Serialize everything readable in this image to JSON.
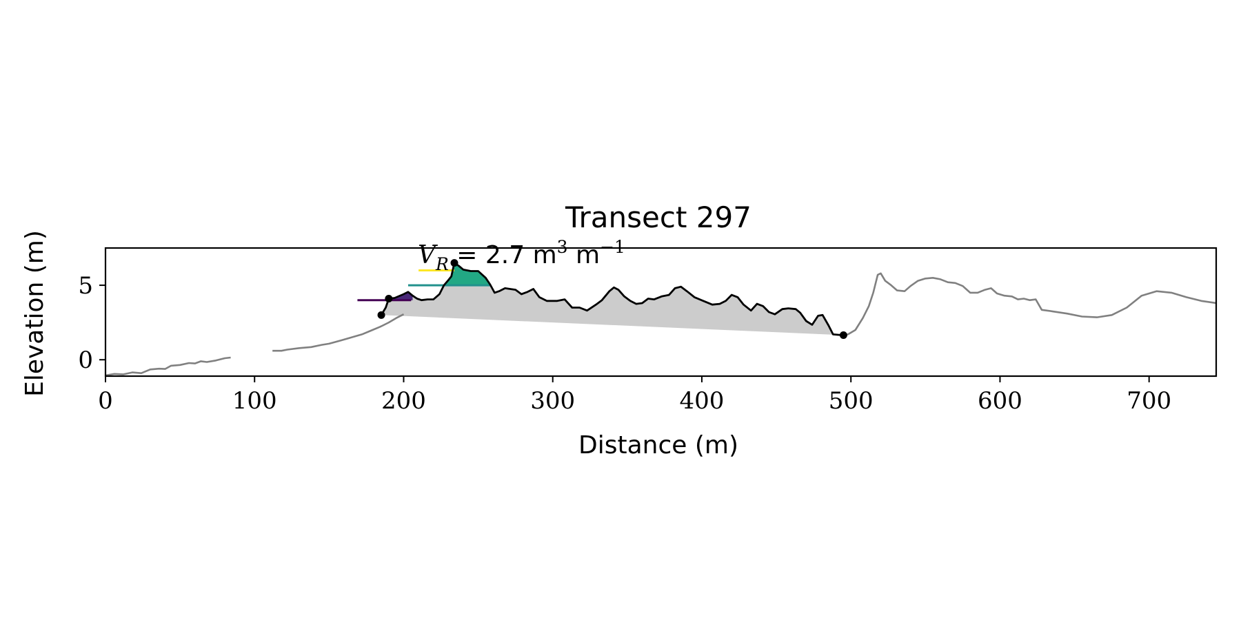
{
  "chart_data": {
    "type": "line",
    "title": "Transect 297",
    "xlabel": "Distance (m)",
    "ylabel": "Elevation (m)",
    "xlim": [
      0,
      745
    ],
    "ylim": [
      -1.1,
      7.5
    ],
    "xticks": [
      0,
      100,
      200,
      300,
      400,
      500,
      600,
      700
    ],
    "yticks": [
      0,
      5
    ],
    "grid": false,
    "legend": "none",
    "annotation": {
      "prefix": "V",
      "subscript": "R",
      "text": " = 2.7 m",
      "sup1": "3",
      "unit2": " m",
      "sup2": "−1"
    },
    "colors": {
      "profile": "#808080",
      "dune": "#000000",
      "fill": "#cccccc",
      "level_low": "#440154",
      "level_mid": "#21918c",
      "level_high": "#fde725",
      "patch_low": "#482878",
      "patch_mid": "#22a884"
    },
    "series": [
      {
        "role": "profile",
        "segments": [
          [
            [
              0,
              -1.05
            ],
            [
              6,
              -0.95
            ],
            [
              12,
              -0.98
            ],
            [
              18,
              -0.85
            ],
            [
              24,
              -0.9
            ],
            [
              30,
              -0.65
            ],
            [
              36,
              -0.6
            ],
            [
              40,
              -0.62
            ],
            [
              44,
              -0.4
            ],
            [
              50,
              -0.35
            ],
            [
              56,
              -0.22
            ],
            [
              60,
              -0.25
            ],
            [
              64,
              -0.1
            ],
            [
              68,
              -0.15
            ],
            [
              74,
              -0.05
            ],
            [
              80,
              0.1
            ],
            [
              84,
              0.15
            ]
          ],
          [
            [
              112,
              0.6
            ],
            [
              118,
              0.6
            ],
            [
              122,
              0.68
            ],
            [
              130,
              0.78
            ],
            [
              138,
              0.85
            ],
            [
              145,
              1.0
            ],
            [
              150,
              1.08
            ],
            [
              158,
              1.3
            ],
            [
              165,
              1.5
            ],
            [
              172,
              1.7
            ],
            [
              178,
              1.95
            ],
            [
              184,
              2.2
            ],
            [
              186,
              2.3
            ],
            [
              190,
              2.5
            ],
            [
              195,
              2.8
            ],
            [
              200,
              3.05
            ]
          ],
          [
            [
              493,
              1.65
            ],
            [
              498,
              1.7
            ],
            [
              503,
              2.0
            ],
            [
              508,
              2.8
            ],
            [
              512,
              3.6
            ],
            [
              515,
              4.5
            ],
            [
              518,
              5.7
            ],
            [
              520,
              5.8
            ],
            [
              523,
              5.3
            ],
            [
              527,
              5.0
            ],
            [
              531,
              4.65
            ],
            [
              536,
              4.6
            ],
            [
              540,
              4.95
            ],
            [
              545,
              5.3
            ],
            [
              550,
              5.45
            ],
            [
              555,
              5.5
            ],
            [
              560,
              5.4
            ],
            [
              565,
              5.2
            ],
            [
              570,
              5.15
            ],
            [
              575,
              4.95
            ],
            [
              580,
              4.5
            ],
            [
              585,
              4.5
            ],
            [
              590,
              4.7
            ],
            [
              594,
              4.8
            ],
            [
              598,
              4.45
            ],
            [
              603,
              4.3
            ],
            [
              608,
              4.25
            ],
            [
              612,
              4.05
            ],
            [
              616,
              4.1
            ],
            [
              620,
              4.0
            ],
            [
              624,
              4.05
            ],
            [
              628,
              3.35
            ],
            [
              635,
              3.25
            ],
            [
              645,
              3.1
            ],
            [
              655,
              2.9
            ],
            [
              665,
              2.85
            ],
            [
              675,
              3.0
            ],
            [
              685,
              3.5
            ],
            [
              695,
              4.3
            ],
            [
              705,
              4.6
            ],
            [
              715,
              4.5
            ],
            [
              725,
              4.2
            ],
            [
              735,
              3.95
            ],
            [
              745,
              3.8
            ]
          ]
        ]
      },
      {
        "role": "dune",
        "points": [
          [
            185,
            3.0
          ],
          [
            188,
            3.5
          ],
          [
            190,
            4.1
          ],
          [
            194,
            4.15
          ],
          [
            200,
            4.4
          ],
          [
            203,
            4.55
          ],
          [
            206,
            4.3
          ],
          [
            209,
            4.1
          ],
          [
            212,
            4.0
          ],
          [
            216,
            4.05
          ],
          [
            220,
            4.05
          ],
          [
            224,
            4.4
          ],
          [
            227,
            5.0
          ],
          [
            230,
            5.35
          ],
          [
            232,
            5.6
          ],
          [
            234,
            6.5
          ],
          [
            237,
            6.3
          ],
          [
            240,
            6.05
          ],
          [
            245,
            5.95
          ],
          [
            250,
            5.95
          ],
          [
            255,
            5.5
          ],
          [
            258,
            5.05
          ],
          [
            261,
            4.5
          ],
          [
            264,
            4.6
          ],
          [
            268,
            4.8
          ],
          [
            275,
            4.7
          ],
          [
            279,
            4.4
          ],
          [
            283,
            4.55
          ],
          [
            287,
            4.75
          ],
          [
            291,
            4.2
          ],
          [
            296,
            3.95
          ],
          [
            303,
            3.95
          ],
          [
            308,
            4.05
          ],
          [
            313,
            3.5
          ],
          [
            318,
            3.5
          ],
          [
            323,
            3.3
          ],
          [
            329,
            3.7
          ],
          [
            333,
            4.0
          ],
          [
            338,
            4.6
          ],
          [
            341,
            4.85
          ],
          [
            344,
            4.7
          ],
          [
            348,
            4.25
          ],
          [
            352,
            3.95
          ],
          [
            356,
            3.75
          ],
          [
            360,
            3.8
          ],
          [
            364,
            4.1
          ],
          [
            368,
            4.05
          ],
          [
            373,
            4.25
          ],
          [
            378,
            4.35
          ],
          [
            382,
            4.8
          ],
          [
            386,
            4.9
          ],
          [
            390,
            4.6
          ],
          [
            395,
            4.2
          ],
          [
            401,
            3.95
          ],
          [
            407,
            3.7
          ],
          [
            412,
            3.75
          ],
          [
            416,
            3.95
          ],
          [
            420,
            4.35
          ],
          [
            424,
            4.2
          ],
          [
            428,
            3.7
          ],
          [
            433,
            3.3
          ],
          [
            437,
            3.75
          ],
          [
            441,
            3.6
          ],
          [
            445,
            3.2
          ],
          [
            449,
            3.05
          ],
          [
            454,
            3.4
          ],
          [
            458,
            3.45
          ],
          [
            463,
            3.4
          ],
          [
            466,
            3.15
          ],
          [
            470,
            2.6
          ],
          [
            474,
            2.35
          ],
          [
            478,
            2.95
          ],
          [
            481,
            3.0
          ],
          [
            485,
            2.3
          ],
          [
            488,
            1.7
          ],
          [
            494,
            1.65
          ]
        ],
        "base": [
          [
            185,
            3.0
          ],
          [
            495,
            1.65
          ]
        ]
      }
    ],
    "markers": [
      [
        185,
        3.0
      ],
      [
        190,
        4.1
      ],
      [
        234,
        6.5
      ],
      [
        495,
        1.65
      ]
    ],
    "levels": [
      {
        "y": 4.0,
        "x": [
          169,
          205
        ],
        "color": "level_low",
        "patch_color": "patch_low",
        "patch": [
          188,
          206
        ]
      },
      {
        "y": 5.0,
        "x": [
          203,
          258
        ],
        "color": "level_mid",
        "patch_color": "patch_mid",
        "patch": [
          225,
          258
        ]
      },
      {
        "y": 6.0,
        "x": [
          210,
          234
        ],
        "color": "level_high",
        "patch_color": null,
        "patch": null
      }
    ]
  }
}
